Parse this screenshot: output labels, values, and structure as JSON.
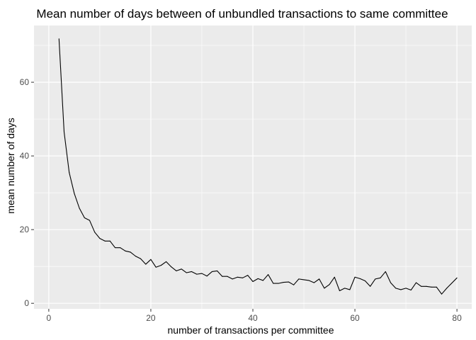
{
  "chart_data": {
    "type": "line",
    "title": "Mean number of days between of unbundled transactions to same committee",
    "xlabel": "number of transactions per committee",
    "ylabel": "mean number of days",
    "xlim": [
      -2.9,
      82.9
    ],
    "ylim": [
      -1.5,
      75.4
    ],
    "x_ticks": [
      0,
      20,
      40,
      60,
      80
    ],
    "y_ticks": [
      0,
      20,
      40,
      60
    ],
    "grid": true,
    "legend": "none",
    "colors": {
      "panel_background": "#ebebeb",
      "grid_major": "#ffffff",
      "line": "#000000"
    },
    "series": [
      {
        "x": [
          2,
          3,
          4,
          5,
          6,
          7,
          8,
          9,
          10,
          11,
          12,
          13,
          14,
          15,
          16,
          17,
          18,
          19,
          20,
          21,
          22,
          23,
          24,
          25,
          26,
          27,
          28,
          29,
          30,
          31,
          32,
          33,
          34,
          35,
          36,
          37,
          38,
          39,
          40,
          41,
          42,
          43,
          44,
          45,
          46,
          47,
          48,
          49,
          50,
          51,
          52,
          53,
          54,
          55,
          56,
          57,
          58,
          59,
          60,
          61,
          62,
          63,
          64,
          65,
          66,
          67,
          68,
          69,
          70,
          71,
          72,
          73,
          74,
          75,
          76,
          77,
          78,
          79,
          80
        ],
        "values": [
          71.8,
          46.5,
          35.5,
          29.8,
          25.8,
          23.2,
          22.5,
          19.3,
          17.6,
          16.9,
          16.9,
          15.1,
          15.1,
          14.2,
          13.9,
          12.8,
          12.1,
          10.6,
          11.9,
          9.8,
          10.3,
          11.3,
          9.9,
          8.8,
          9.3,
          8.3,
          8.6,
          7.9,
          8.1,
          7.4,
          8.6,
          8.8,
          7.3,
          7.3,
          6.6,
          7.1,
          6.9,
          7.6,
          5.9,
          6.7,
          6.2,
          7.8,
          5.4,
          5.4,
          5.7,
          5.8,
          5.0,
          6.6,
          6.4,
          6.2,
          5.6,
          6.6,
          4.1,
          5.1,
          7.1,
          3.4,
          4.1,
          3.7,
          7.1,
          6.7,
          6.1,
          4.6,
          6.6,
          6.9,
          8.6,
          5.6,
          4.1,
          3.7,
          4.1,
          3.6,
          5.6,
          4.6,
          4.6,
          4.4,
          4.4,
          2.5,
          4.1,
          5.5,
          6.9
        ]
      }
    ]
  }
}
